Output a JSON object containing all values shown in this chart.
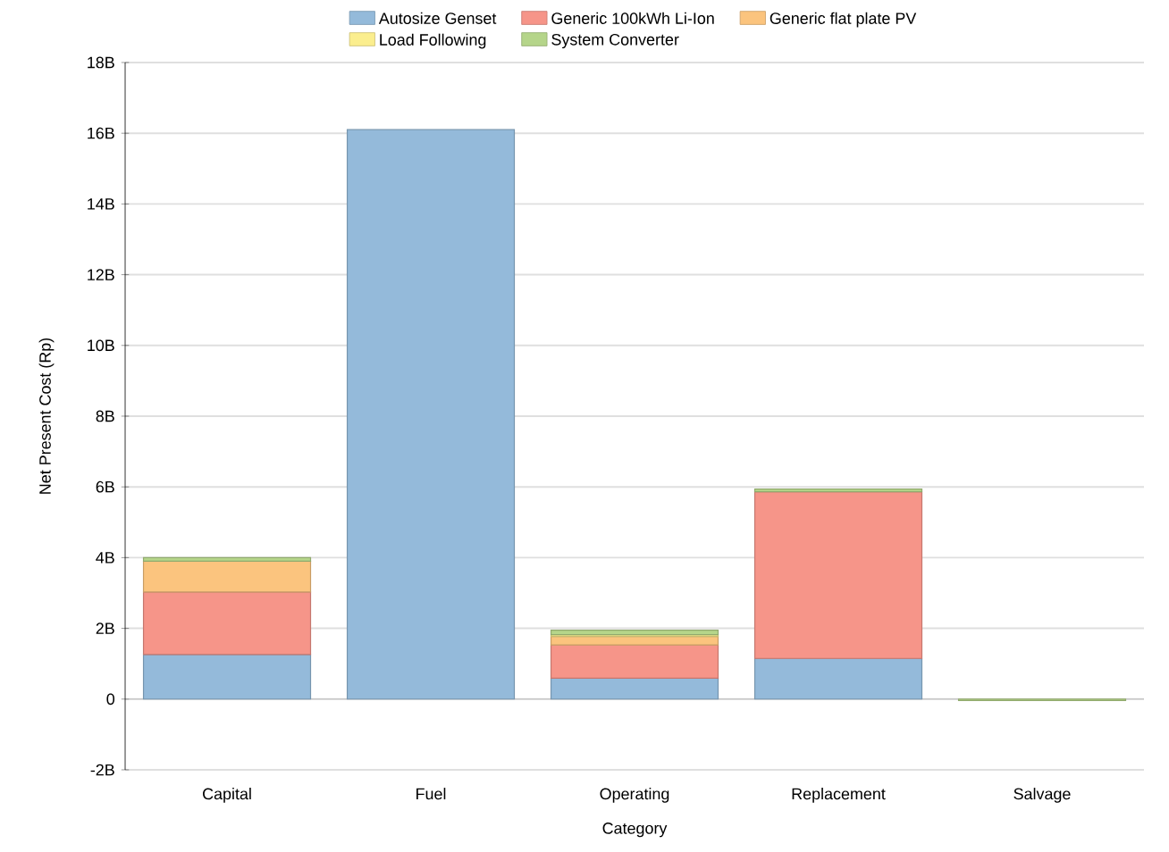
{
  "chart_data": {
    "type": "bar",
    "stacked": true,
    "xlabel": "Category",
    "ylabel": "Net Present Cost (Rp)",
    "categories": [
      "Capital",
      "Fuel",
      "Operating",
      "Replacement",
      "Salvage"
    ],
    "series": [
      {
        "name": "Autosize Genset",
        "color": "#94bada",
        "values": [
          1.26,
          16.1,
          0.59,
          1.15,
          null
        ]
      },
      {
        "name": "Generic 100kWh Li-Ion",
        "color": "#f69589",
        "values": [
          1.77,
          null,
          0.94,
          4.71,
          null
        ]
      },
      {
        "name": "Generic flat plate PV",
        "color": "#fbc47e",
        "values": [
          0.87,
          null,
          0.24,
          null,
          null
        ]
      },
      {
        "name": "Load Following",
        "color": "#fbee8e",
        "values": [
          null,
          null,
          0.05,
          null,
          null
        ]
      },
      {
        "name": "System Converter",
        "color": "#b5d58a",
        "values": [
          0.1,
          null,
          0.13,
          0.08,
          -0.04
        ]
      }
    ],
    "ylim": [
      -2,
      18
    ],
    "yticks": [
      {
        "value": -2,
        "label": "-2B"
      },
      {
        "value": 0,
        "label": "0"
      },
      {
        "value": 2,
        "label": "2B"
      },
      {
        "value": 4,
        "label": "4B"
      },
      {
        "value": 6,
        "label": "6B"
      },
      {
        "value": 8,
        "label": "8B"
      },
      {
        "value": 10,
        "label": "10B"
      },
      {
        "value": 12,
        "label": "12B"
      },
      {
        "value": 14,
        "label": "14B"
      },
      {
        "value": 16,
        "label": "16B"
      },
      {
        "value": 18,
        "label": "18B"
      }
    ],
    "grid": "y",
    "legend": "top"
  }
}
